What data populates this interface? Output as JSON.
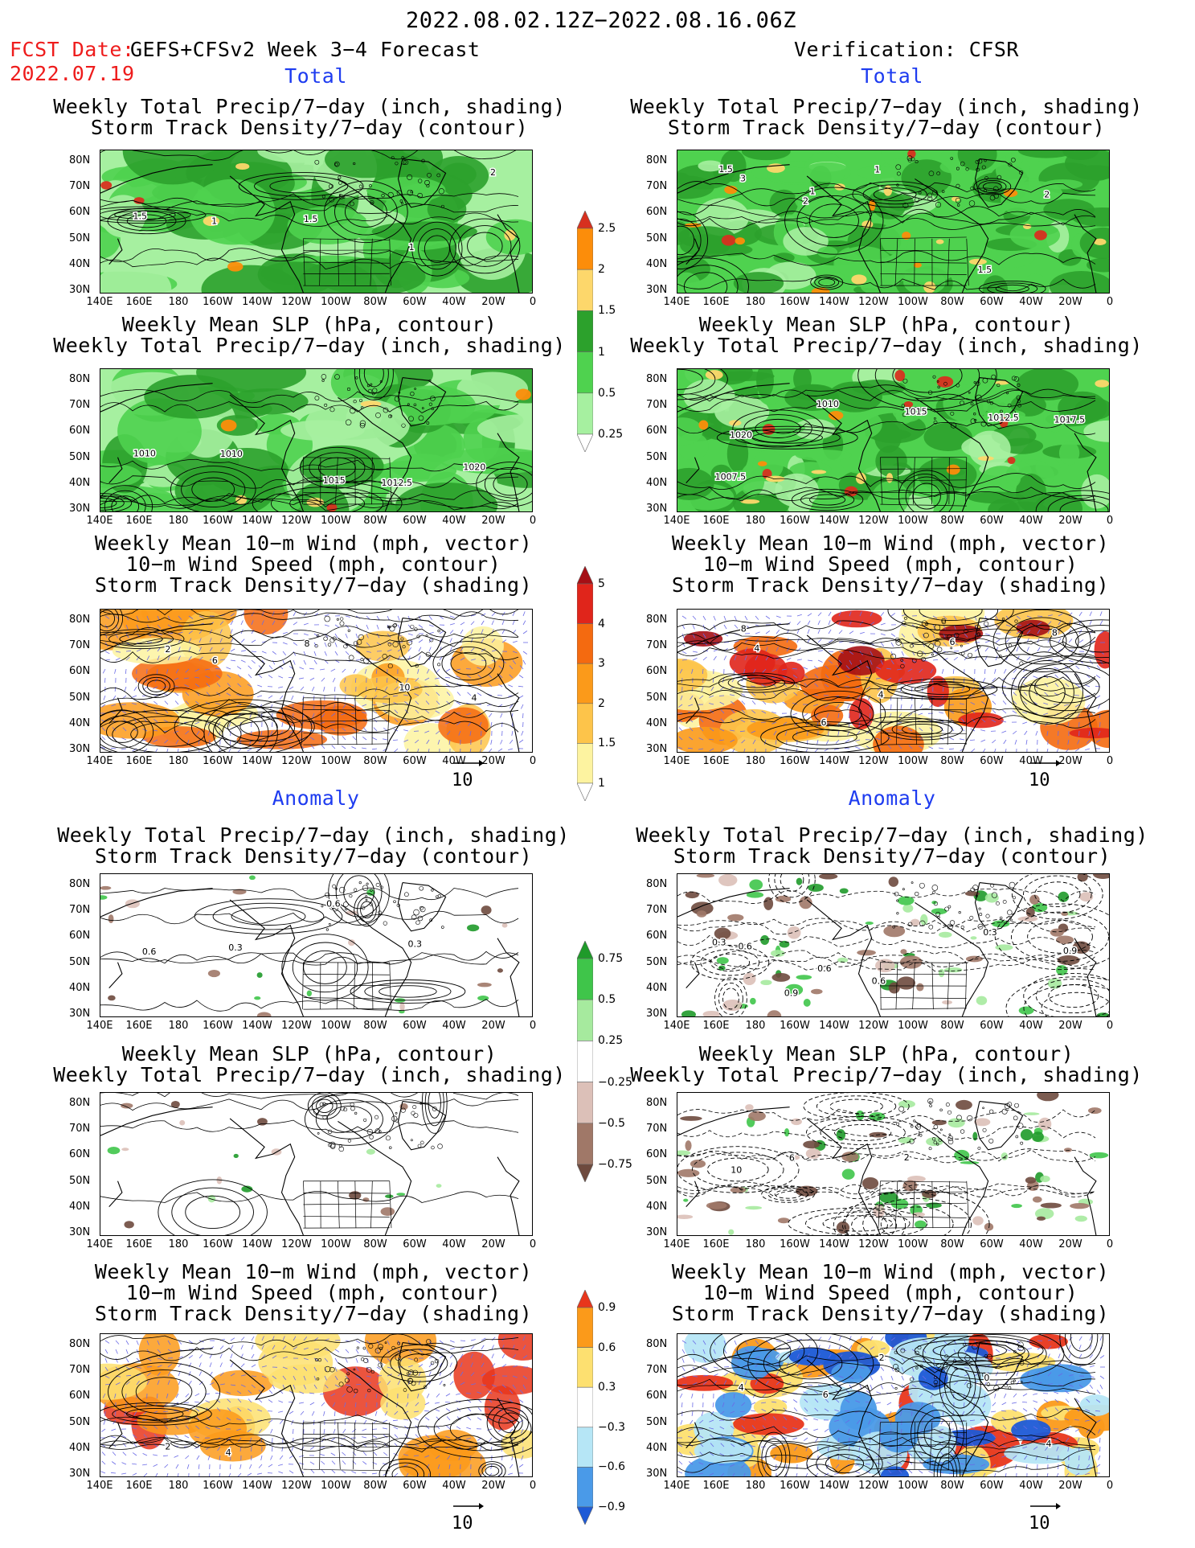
{
  "header": {
    "period": "2022.08.02.12Z−2022.08.16.06Z",
    "fcst_label": "FCST Date:",
    "fcst_model": "GEFS+CFSv2 Week 3−4 Forecast",
    "fcst_date": "2022.07.19",
    "verification": "Verification: CFSR"
  },
  "sections": {
    "total": "Total",
    "anomaly": "Anomaly"
  },
  "titles": {
    "precip_storm": [
      "Weekly Total Precip/7−day (inch, shading)",
      "Storm Track Density/7−day (contour)"
    ],
    "slp_precip": [
      "Weekly Mean SLP (hPa, contour)",
      "Weekly Total Precip/7−day (inch, shading)"
    ],
    "wind": [
      "Weekly Mean 10−m Wind (mph, vector)",
      "10−m Wind Speed (mph, contour)",
      "Storm Track Density/7−day (shading)"
    ]
  },
  "axes": {
    "lat_labels": [
      "80N",
      "70N",
      "60N",
      "50N",
      "40N",
      "30N"
    ],
    "lon_labels": [
      "140E",
      "160E",
      "180",
      "160W",
      "140W",
      "120W",
      "100W",
      "80W",
      "60W",
      "40W",
      "20W",
      "0"
    ]
  },
  "reference_vector": "10",
  "colorbars": {
    "precip_total": {
      "labels": [
        "2.5",
        "2",
        "1.5",
        "1",
        "0.5",
        "0.25"
      ],
      "colors": [
        "#d7301f",
        "#fc8d0a",
        "#fdd76b",
        "#2ca12c",
        "#4fd24f",
        "#a6f0a0",
        "#ffffff"
      ]
    },
    "storm_total": {
      "labels": [
        "5",
        "4",
        "3",
        "2",
        "1.5",
        "1"
      ],
      "colors": [
        "#a50f15",
        "#e0251b",
        "#f46a10",
        "#fb9a1a",
        "#fdc44a",
        "#fdf3a0",
        "#ffffff"
      ]
    },
    "precip_anom": {
      "labels": [
        "0.75",
        "0.5",
        "0.25",
        "−0.25",
        "−0.5",
        "−0.75"
      ],
      "colors": [
        "#1f9a2a",
        "#3fc54a",
        "#a6ea9e",
        "#ffffff",
        "#dcc0b8",
        "#a07868",
        "#6e4a3e"
      ]
    },
    "storm_anom": {
      "labels": [
        "0.9",
        "0.6",
        "0.3",
        "−0.3",
        "−0.6",
        "−0.9"
      ],
      "colors": [
        "#e8361c",
        "#fb9a1a",
        "#fde070",
        "#ffffff",
        "#b6e6f6",
        "#4a9ae8",
        "#1e5ad6"
      ]
    }
  },
  "panel_contour_labels": {
    "l1": [
      "1.5",
      "1",
      "1.5",
      "1",
      "2"
    ],
    "r1": [
      "1.5",
      "2",
      "1",
      "1.5",
      "2",
      "3",
      "1"
    ],
    "l2": [
      "1010",
      "1010",
      "1015",
      "1012.5",
      "1020"
    ],
    "r2": [
      "1007.5",
      "1010",
      "1015",
      "1012.5",
      "1017.5",
      "1020"
    ],
    "l3": [
      "2",
      "6",
      "8",
      "10",
      "4"
    ],
    "r3": [
      "8",
      "6",
      "4",
      "6",
      "8",
      "4"
    ],
    "l4": [
      "0.6",
      "0.3",
      "0.6",
      "0.3"
    ],
    "r4": [
      "0.3",
      "0.9",
      "0.6",
      "0.3",
      "0.9",
      "0.6",
      "0.6"
    ],
    "l5": [],
    "r5": [
      "10",
      "6",
      "2"
    ],
    "l6": [
      "2",
      "4"
    ],
    "r6": [
      "4",
      "6",
      "2",
      "0",
      "4"
    ]
  }
}
